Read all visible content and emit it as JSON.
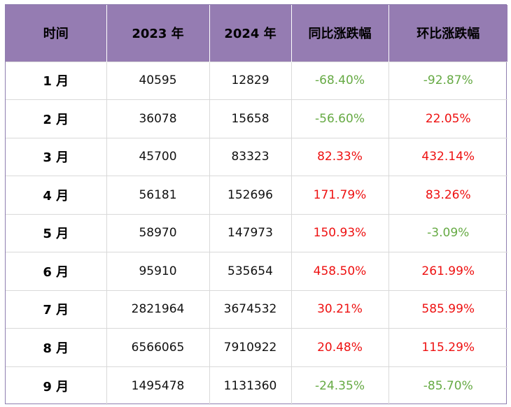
{
  "header": {
    "col1": "时间",
    "col2": "2023 年",
    "col3": "2024 年",
    "col4": "同比涨跌幅",
    "col5": "环比涨跌幅"
  },
  "colors": {
    "header_bg": "#957cb2",
    "positive": "#ee1111",
    "negative": "#66aa44"
  },
  "rows": [
    {
      "month": "1 月",
      "y2023": "40595",
      "y2024": "12829",
      "yoy": "-68.40%",
      "mom": "-92.87%"
    },
    {
      "month": "2 月",
      "y2023": "36078",
      "y2024": "15658",
      "yoy": "-56.60%",
      "mom": "22.05%"
    },
    {
      "month": "3 月",
      "y2023": "45700",
      "y2024": "83323",
      "yoy": "82.33%",
      "mom": "432.14%"
    },
    {
      "month": "4 月",
      "y2023": "56181",
      "y2024": "152696",
      "yoy": "171.79%",
      "mom": "83.26%"
    },
    {
      "month": "5 月",
      "y2023": "58970",
      "y2024": "147973",
      "yoy": "150.93%",
      "mom": "-3.09%"
    },
    {
      "month": "6 月",
      "y2023": "95910",
      "y2024": "535654",
      "yoy": "458.50%",
      "mom": "261.99%"
    },
    {
      "month": "7 月",
      "y2023": "2821964",
      "y2024": "3674532",
      "yoy": "30.21%",
      "mom": "585.99%"
    },
    {
      "month": "8 月",
      "y2023": "6566065",
      "y2024": "7910922",
      "yoy": "20.48%",
      "mom": "115.29%"
    },
    {
      "month": "9 月",
      "y2023": "1495478",
      "y2024": "1131360",
      "yoy": "-24.35%",
      "mom": "-85.70%"
    }
  ]
}
